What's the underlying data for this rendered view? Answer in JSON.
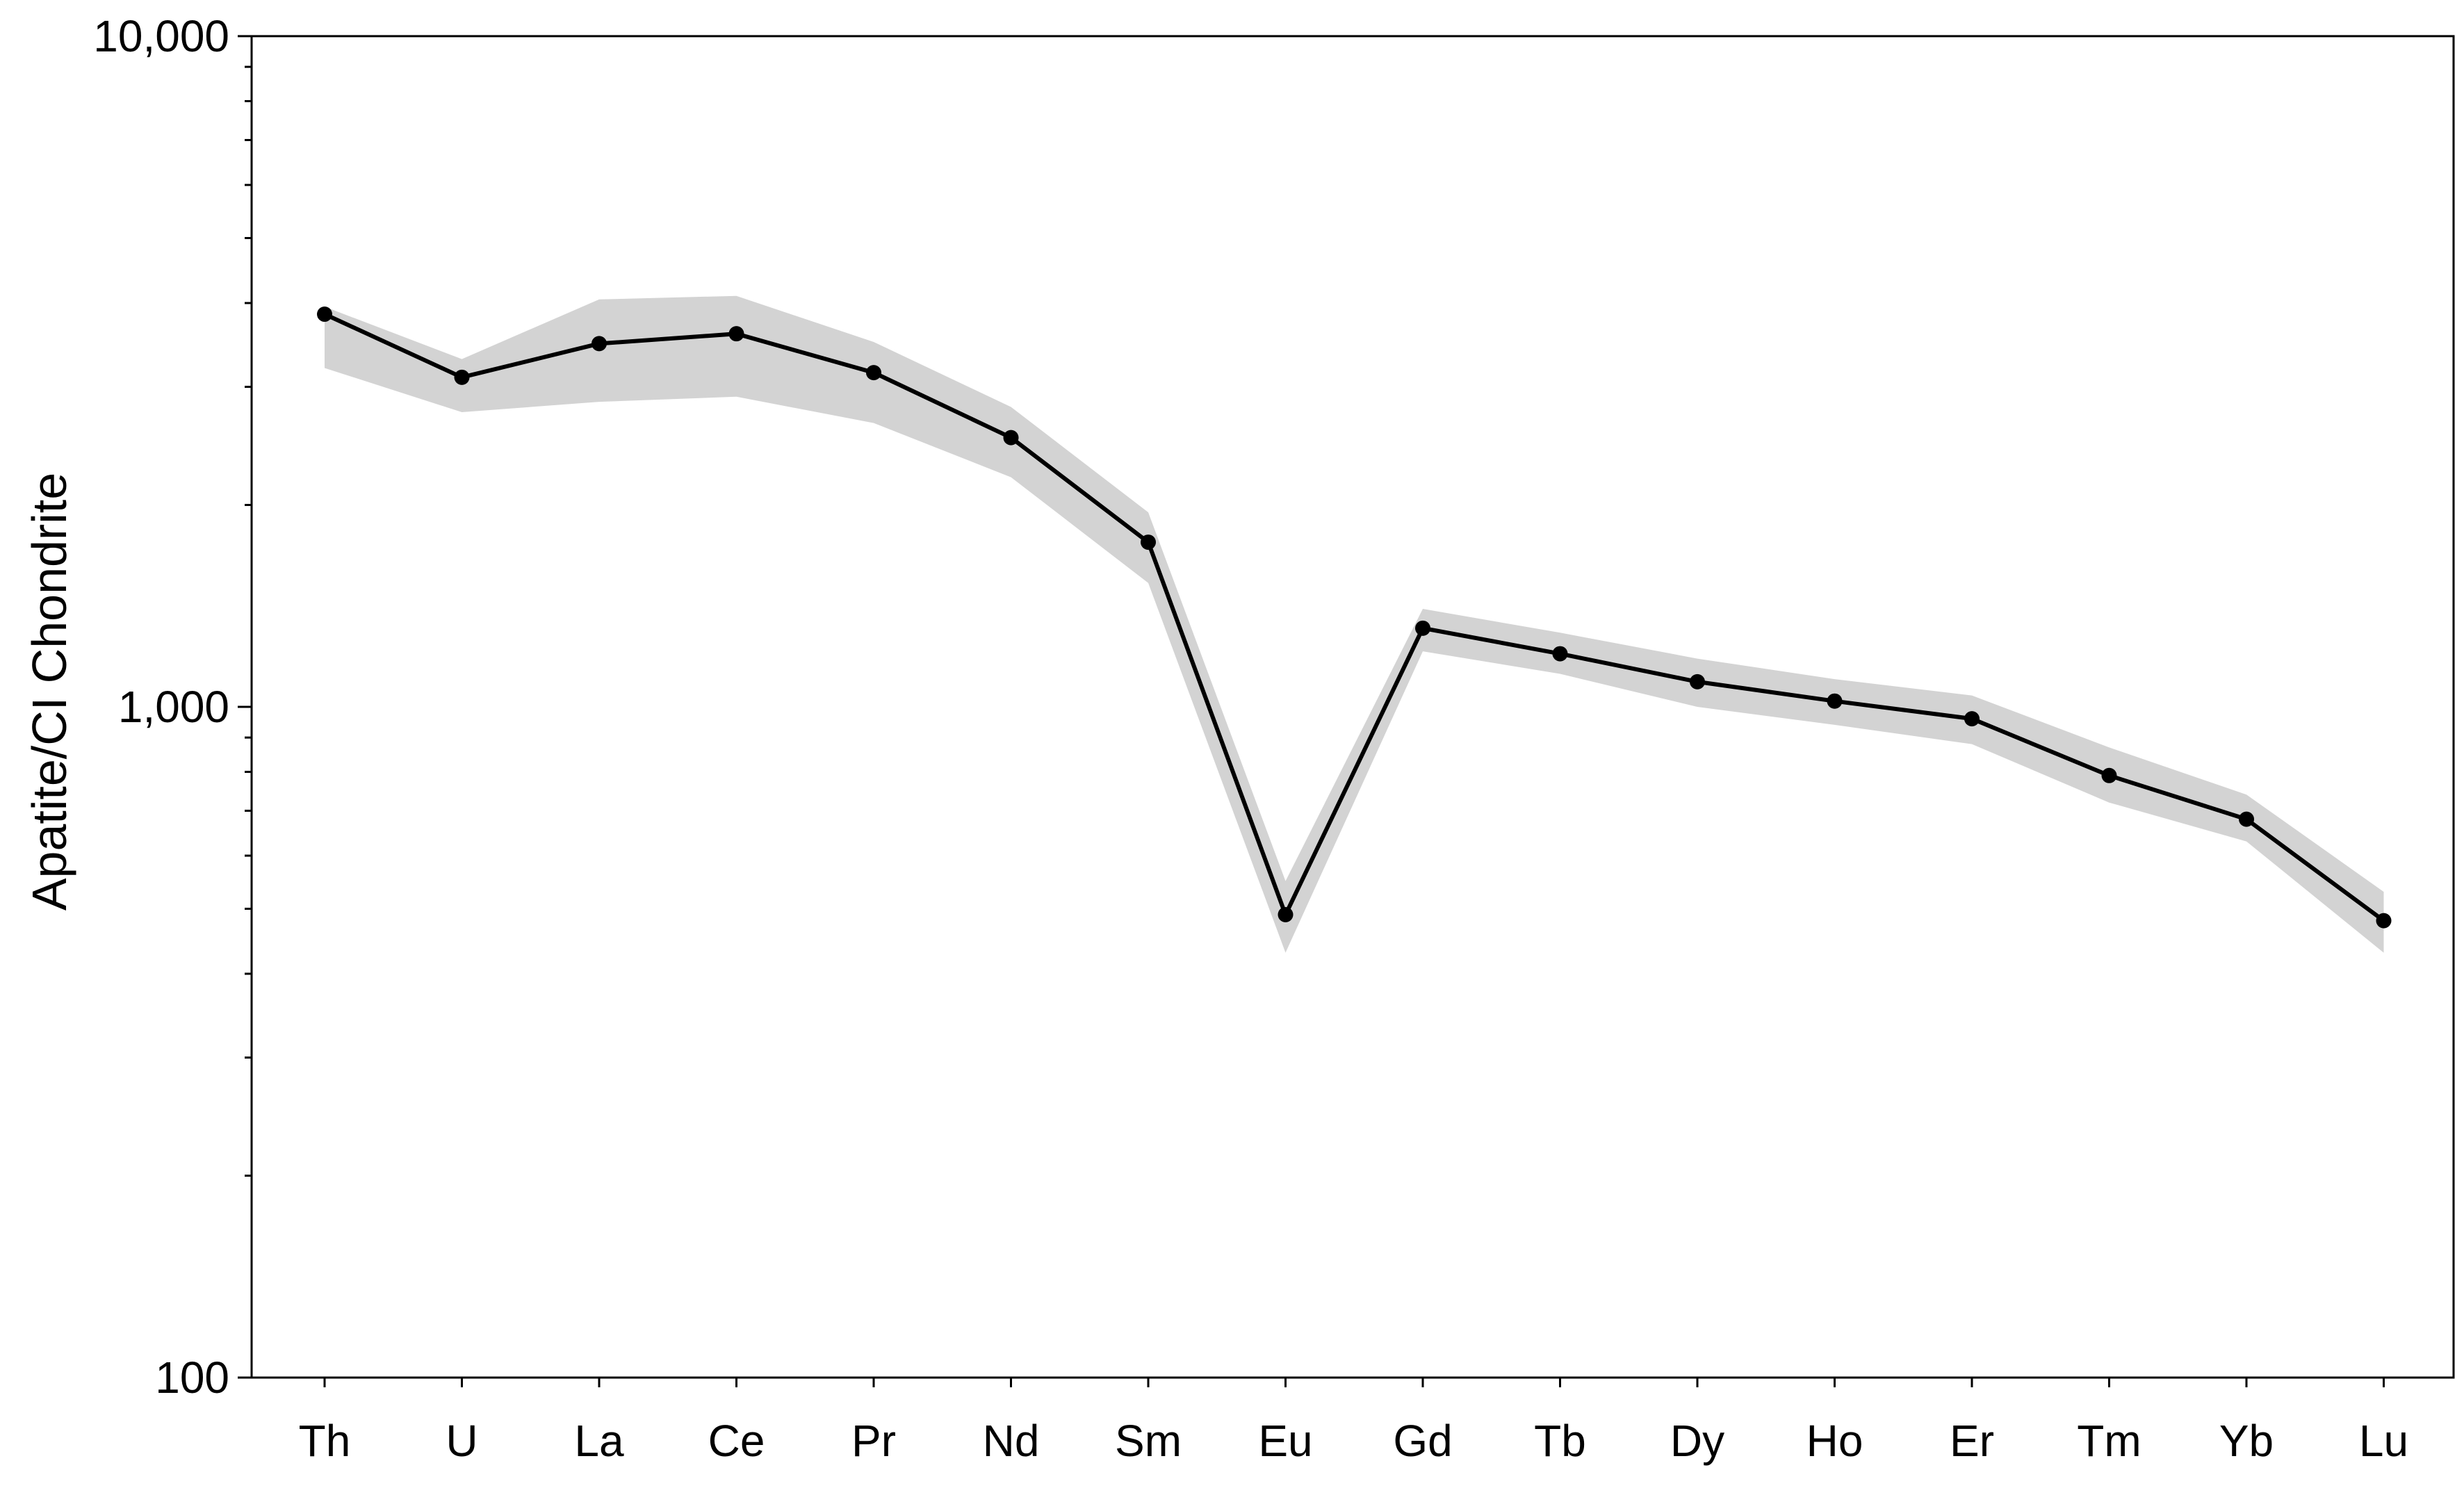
{
  "chart_data": {
    "type": "line",
    "title": "",
    "xlabel": "",
    "ylabel": "Apatite/CI Chondrite",
    "y_scale": "log",
    "ylim": [
      100,
      10000
    ],
    "y_ticks": [
      {
        "value": 100,
        "label": "100"
      },
      {
        "value": 1000,
        "label": "1,000"
      },
      {
        "value": 10000,
        "label": "10,000"
      }
    ],
    "grid": false,
    "legend": "none",
    "categories": [
      "Th",
      "U",
      "La",
      "Ce",
      "Pr",
      "Nd",
      "Sm",
      "Eu",
      "Gd",
      "Tb",
      "Dy",
      "Ho",
      "Er",
      "Tm",
      "Yb",
      "Lu"
    ],
    "series": [
      {
        "values": [
          3850,
          3100,
          3480,
          3600,
          3150,
          2520,
          1760,
          490,
          1310,
          1200,
          1090,
          1020,
          960,
          790,
          680,
          480
        ],
        "color": "#000000",
        "marker": "circle"
      }
    ],
    "range_band": {
      "upper": [
        3950,
        3300,
        4050,
        4100,
        3500,
        2800,
        1950,
        550,
        1400,
        1290,
        1180,
        1100,
        1040,
        870,
        740,
        530
      ],
      "lower": [
        3200,
        2750,
        2850,
        2900,
        2650,
        2200,
        1530,
        430,
        1210,
        1120,
        1000,
        940,
        880,
        720,
        630,
        430
      ],
      "color": "#d3d3d3"
    }
  }
}
